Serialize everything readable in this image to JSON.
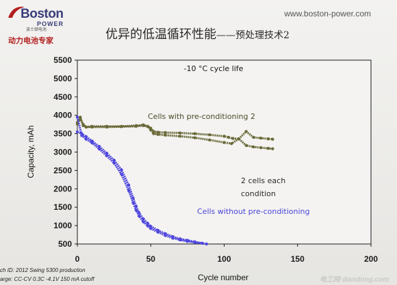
{
  "header": {
    "logo_name": "Boston",
    "logo_power": "POWER",
    "logo_cn": "波士顿电池",
    "tagline": "动力电池专家",
    "website": "www.boston-power.com",
    "title_main": "优异的低温循环性能",
    "title_suffix": "——预处理技术2"
  },
  "footnotes": {
    "line1": "ch ID: 2012 Swing 5300 production",
    "line2": "arge:      CC-CV  0.3C -4.1V  150 mA cutoff"
  },
  "watermark": "电工网 diandong.com",
  "chart_data": {
    "type": "scatter",
    "title": "-10 °C cycle life",
    "xlabel": "Cycle number",
    "ylabel": "Capacity, mAh",
    "xlim": [
      0,
      200
    ],
    "ylim": [
      500,
      5500
    ],
    "x_ticks": [
      0,
      50,
      100,
      150,
      200
    ],
    "y_ticks": [
      500,
      1000,
      1500,
      2000,
      2500,
      3000,
      3500,
      4000,
      4500,
      5000,
      5500
    ],
    "grid": false,
    "annotations": [
      {
        "text": "Cells with pre-conditioning 2",
        "color": "#4a4a28"
      },
      {
        "text": "2 cells each",
        "color": "#2a2a2a"
      },
      {
        "text": "condition",
        "color": "#2a2a2a"
      },
      {
        "text": "Cells without pre-conditioning",
        "color": "#4b45d8"
      }
    ],
    "series": [
      {
        "color": "#6a6a3a",
        "x": [
          0,
          2,
          4,
          6,
          10,
          20,
          30,
          40,
          45,
          48,
          50,
          52,
          55,
          60,
          70,
          80,
          90,
          100,
          103,
          106,
          110,
          115,
          120,
          125,
          130,
          133
        ],
        "y": [
          3800,
          3900,
          3750,
          3680,
          3700,
          3700,
          3700,
          3720,
          3740,
          3700,
          3650,
          3560,
          3540,
          3530,
          3520,
          3500,
          3470,
          3430,
          3400,
          3370,
          3360,
          3560,
          3400,
          3380,
          3360,
          3350
        ]
      },
      {
        "color": "#6a6a3a",
        "x": [
          0,
          2,
          4,
          6,
          10,
          20,
          30,
          40,
          45,
          48,
          50,
          52,
          55,
          60,
          70,
          80,
          90,
          100,
          105,
          110,
          115,
          120,
          125,
          130,
          133
        ],
        "y": [
          3760,
          3950,
          3720,
          3680,
          3680,
          3680,
          3690,
          3700,
          3720,
          3690,
          3600,
          3500,
          3480,
          3460,
          3430,
          3390,
          3330,
          3260,
          3230,
          3360,
          3180,
          3140,
          3120,
          3100,
          3090
        ]
      },
      {
        "color": "#5047dd",
        "x": [
          0,
          3,
          6,
          10,
          15,
          20,
          25,
          30,
          35,
          38,
          40,
          42,
          45,
          48,
          50,
          55,
          60,
          65,
          70,
          75,
          80,
          85,
          88
        ],
        "y": [
          3550,
          3500,
          3420,
          3300,
          3150,
          2970,
          2780,
          2520,
          2100,
          1750,
          1530,
          1350,
          1180,
          1060,
          980,
          870,
          780,
          700,
          640,
          600,
          560,
          520,
          500
        ]
      },
      {
        "color": "#5047dd",
        "x": [
          0,
          3,
          6,
          10,
          15,
          20,
          25,
          30,
          35,
          38,
          40,
          42,
          45,
          48,
          50,
          55,
          60,
          65,
          70,
          75,
          80,
          85
        ],
        "y": [
          3950,
          3450,
          3350,
          3250,
          3080,
          2900,
          2700,
          2400,
          1950,
          1620,
          1420,
          1260,
          1100,
          990,
          920,
          820,
          730,
          660,
          610,
          570,
          540,
          520
        ]
      }
    ]
  }
}
